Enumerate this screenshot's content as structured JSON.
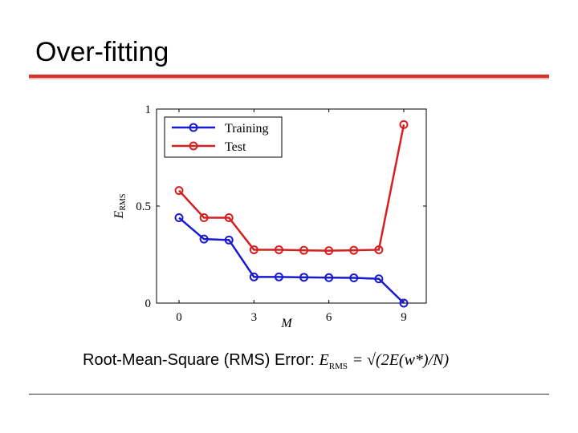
{
  "slide": {
    "title": "Over-fitting",
    "caption_label": "Root-Mean-Square (RMS) Error:",
    "formula_lhs": "E",
    "formula_lhs_sub": "RMS",
    "formula_rhs": "= √(2E(w*)/N)"
  },
  "colors": {
    "accent": "#d9302a",
    "training": "#1a1ad0",
    "test": "#d62020"
  },
  "chart_data": {
    "type": "line",
    "xlabel": "M",
    "ylabel": "E_RMS",
    "ylabel_main": "E",
    "ylabel_sub": "RMS",
    "xlim": [
      -0.9,
      9.9
    ],
    "ylim": [
      0,
      1
    ],
    "xticks": [
      0,
      3,
      6,
      9
    ],
    "yticks": [
      0,
      0.5,
      1
    ],
    "ytick_labels": [
      "0",
      "0.5",
      "1"
    ],
    "grid": false,
    "legend_position": "top-left",
    "x": [
      0,
      1,
      2,
      3,
      4,
      5,
      6,
      7,
      8,
      9
    ],
    "series": [
      {
        "name": "Training",
        "color": "#1a1ad0",
        "values": [
          0.44,
          0.33,
          0.325,
          0.135,
          0.135,
          0.133,
          0.131,
          0.13,
          0.125,
          0.0
        ]
      },
      {
        "name": "Test",
        "color": "#d62020",
        "values": [
          0.58,
          0.44,
          0.44,
          0.275,
          0.275,
          0.272,
          0.27,
          0.272,
          0.275,
          0.92
        ]
      }
    ]
  }
}
